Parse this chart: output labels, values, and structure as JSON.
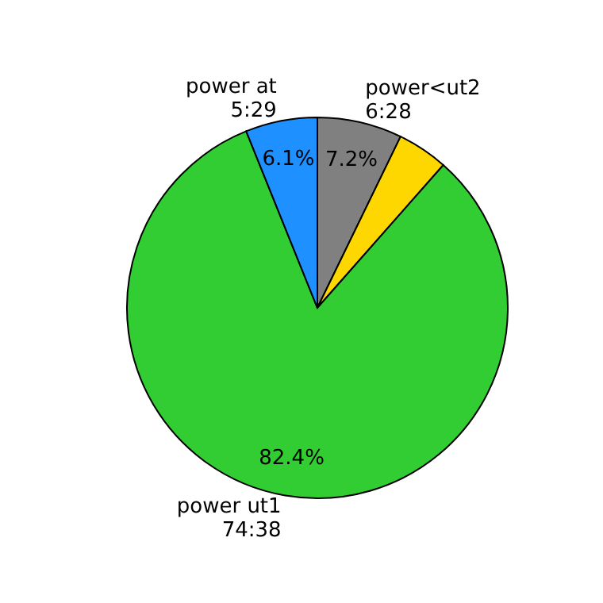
{
  "chart_data": {
    "type": "pie",
    "categories": [
      "power<ut2\n6:28",
      null,
      "power ut1\n74:38",
      "power at\n5:29"
    ],
    "values": [
      7.2,
      4.3,
      82.4,
      6.1
    ],
    "colors": [
      "#808080",
      "#ffd700",
      "#32cd32",
      "#1e90ff"
    ],
    "value_labels": [
      "7.2%",
      null,
      "82.4%",
      "6.1%"
    ],
    "legend": false
  }
}
